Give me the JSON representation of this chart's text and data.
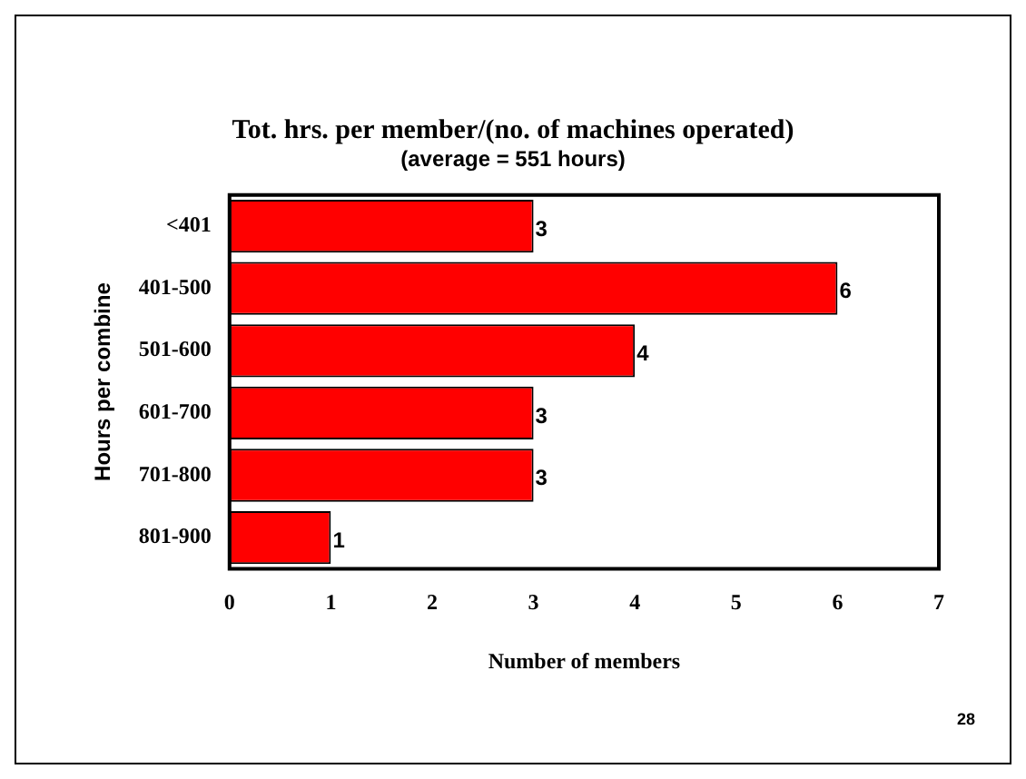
{
  "chart_data": {
    "type": "bar",
    "orientation": "horizontal",
    "title": "Tot. hrs. per member/(no. of machines operated)",
    "subtitle": "(average = 551 hours)",
    "xlabel": "Number of members",
    "ylabel": "Hours per combine",
    "categories": [
      "<401",
      "401-500",
      "501-600",
      "601-700",
      "701-800",
      "801-900"
    ],
    "values": [
      3,
      6,
      4,
      3,
      3,
      1
    ],
    "color": "#ff0000",
    "xlim": [
      0,
      7
    ],
    "xticks": [
      0,
      1,
      2,
      3,
      4,
      5,
      6,
      7
    ],
    "grid": false,
    "data_labels": true,
    "annotations": [
      "28"
    ]
  }
}
